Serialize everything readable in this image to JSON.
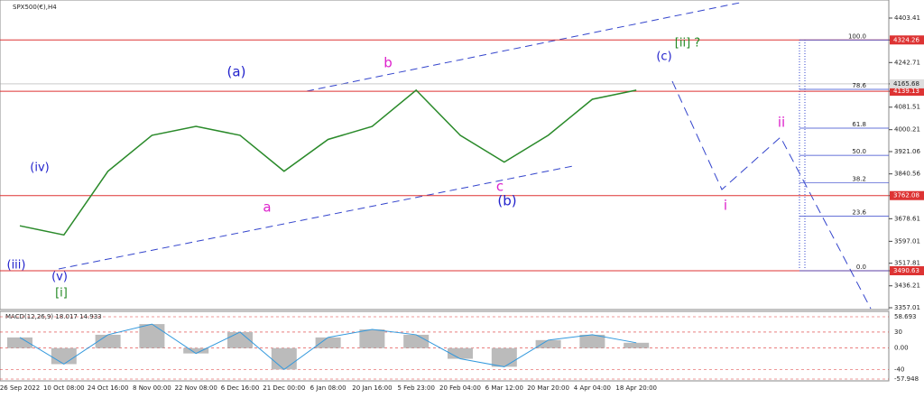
{
  "chart_data": {
    "type": "line",
    "title": "SPX500(€),H4",
    "categories": [
      "26 Sep 2022",
      "10 Oct 08:00",
      "24 Oct 16:00",
      "8 Nov 00:00",
      "22 Nov 08:00",
      "6 Dec 16:00",
      "21 Dec 00:00",
      "6 Jan 08:00",
      "20 Jan 16:00",
      "5 Feb 23:00",
      "20 Feb 04:00",
      "6 Mar 12:00",
      "20 Mar 20:00",
      "4 Apr 04:00",
      "18 Apr 20:00"
    ],
    "series": [
      {
        "name": "SPX500",
        "color": "#2a8a2a",
        "values": [
          3653,
          3620,
          3850,
          3980,
          4012,
          3980,
          3850,
          3965,
          4012,
          4143,
          3980,
          3883,
          3980,
          4110,
          4143
        ]
      }
    ],
    "ylim": [
      3357.01,
      4403.41
    ],
    "yticks": [
      4403.41,
      4324.26,
      4242.71,
      4165.68,
      4139.13,
      4081.51,
      4000.21,
      3921.06,
      3840.56,
      3762.08,
      3678.61,
      3597.01,
      3517.81,
      3490.63,
      3436.21,
      3357.01
    ],
    "levels": [
      4324.26,
      4139.13,
      3762.08,
      3490.63
    ],
    "current_price": 4165.68,
    "fib": [
      {
        "value": 100,
        "label": "100.0"
      },
      {
        "value": 78.6,
        "label": "78.6"
      },
      {
        "value": 61.8,
        "label": "61.8"
      },
      {
        "value": 50,
        "label": "50.0"
      },
      {
        "value": 38.2,
        "label": "38.2"
      },
      {
        "value": 23.6,
        "label": "23.6"
      },
      {
        "value": 0,
        "label": "0.0"
      }
    ],
    "annotations": [
      {
        "text": "(iii)",
        "color": "#2222cc"
      },
      {
        "text": "(iv)",
        "color": "#2222cc"
      },
      {
        "text": "(v)",
        "color": "#2222cc"
      },
      {
        "text": "[i]",
        "color": "#228822"
      },
      {
        "text": "(a)",
        "color": "#2222cc"
      },
      {
        "text": "a",
        "color": "#dd22cc"
      },
      {
        "text": "b",
        "color": "#dd22cc"
      },
      {
        "text": "c",
        "color": "#dd22cc"
      },
      {
        "text": "(b)",
        "color": "#2222cc"
      },
      {
        "text": "(c)",
        "color": "#2222cc"
      },
      {
        "text": "[ii] ?",
        "color": "#228822"
      },
      {
        "text": "i",
        "color": "#dd22cc"
      },
      {
        "text": "ii",
        "color": "#dd22cc"
      }
    ],
    "macd": {
      "title": "MACD(12,26,9) 18.017 14.933",
      "values": [
        20,
        -30,
        25,
        45,
        -10,
        30,
        -40,
        20,
        35,
        25,
        -20,
        -35,
        15,
        25,
        10
      ],
      "ylim": [
        -57.948,
        58.693
      ],
      "yticks": [
        58.693,
        30,
        {
          "value": 0,
          "label": "0.00"
        },
        -40,
        -57.948
      ]
    }
  }
}
